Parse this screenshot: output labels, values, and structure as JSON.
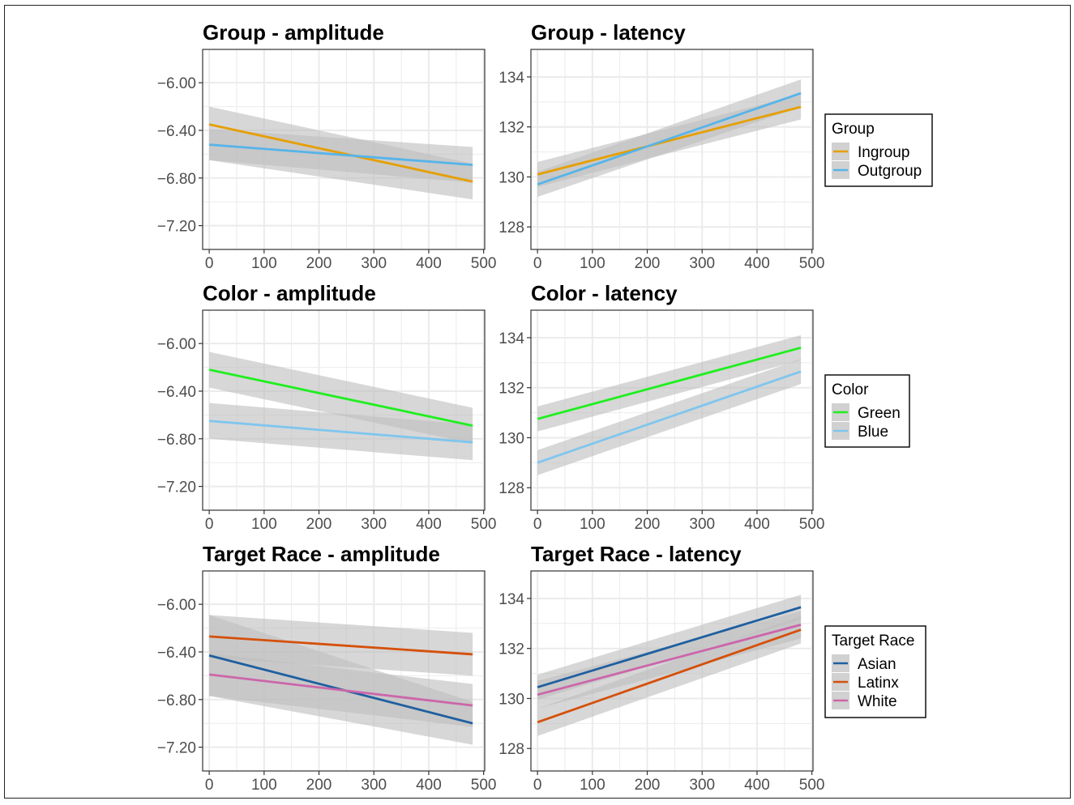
{
  "colors": {
    "ingroup": "#E69F00",
    "outgroup": "#56B4E9",
    "green": "#1FEF1F",
    "blue": "#7FC6EE",
    "asian": "#1F5FA0",
    "latinx": "#D5500A",
    "white": "#CC66AA",
    "ribbon": "#BEBEBE",
    "grid": "#EBEBEB",
    "panel_border": "#333333"
  },
  "chart_data": [
    {
      "type": "line",
      "title": "Group - amplitude",
      "xlabel": "",
      "ylabel": "",
      "xlim": [
        -12,
        502
      ],
      "ylim": [
        -7.4,
        -5.72
      ],
      "xticks": [
        "0",
        "100",
        "200",
        "300",
        "400",
        "500"
      ],
      "yticks": [
        "-6.00",
        "-6.40",
        "-6.80",
        "-7.20"
      ],
      "grid": true,
      "series": [
        {
          "name": "Ingroup",
          "color": "ingroup",
          "x": [
            0,
            480
          ],
          "y": [
            -6.35,
            -6.83
          ],
          "lower": [
            -6.65,
            -6.98
          ],
          "upper": [
            -6.2,
            -6.68
          ]
        },
        {
          "name": "Outgroup",
          "color": "outgroup",
          "x": [
            0,
            480
          ],
          "y": [
            -6.52,
            -6.69
          ],
          "lower": [
            -6.65,
            -6.84
          ],
          "upper": [
            -6.39,
            -6.54
          ]
        }
      ]
    },
    {
      "type": "line",
      "title": "Group - latency",
      "xlabel": "",
      "ylabel": "",
      "xlim": [
        -12,
        502
      ],
      "ylim": [
        127.1,
        135.1
      ],
      "xticks": [
        "0",
        "100",
        "200",
        "300",
        "400",
        "500"
      ],
      "yticks": [
        "134",
        "132",
        "130",
        "128"
      ],
      "grid": true,
      "series": [
        {
          "name": "Ingroup",
          "color": "ingroup",
          "x": [
            0,
            480
          ],
          "y": [
            130.1,
            132.8
          ],
          "lower": [
            129.6,
            132.3
          ],
          "upper": [
            130.6,
            133.3
          ]
        },
        {
          "name": "Outgroup",
          "color": "outgroup",
          "x": [
            0,
            480
          ],
          "y": [
            129.7,
            133.35
          ],
          "lower": [
            129.2,
            132.8
          ],
          "upper": [
            130.2,
            133.9
          ]
        }
      ]
    },
    {
      "type": "line",
      "title": "Color - amplitude",
      "xlabel": "",
      "ylabel": "",
      "xlim": [
        -12,
        502
      ],
      "ylim": [
        -7.4,
        -5.72
      ],
      "xticks": [
        "0",
        "100",
        "200",
        "300",
        "400",
        "500"
      ],
      "yticks": [
        "-6.00",
        "-6.40",
        "-6.80",
        "-7.20"
      ],
      "grid": true,
      "series": [
        {
          "name": "Green",
          "color": "green",
          "x": [
            0,
            480
          ],
          "y": [
            -6.22,
            -6.69
          ],
          "lower": [
            -6.37,
            -6.84
          ],
          "upper": [
            -6.07,
            -6.54
          ]
        },
        {
          "name": "Blue",
          "color": "blue",
          "x": [
            0,
            480
          ],
          "y": [
            -6.65,
            -6.83
          ],
          "lower": [
            -6.8,
            -6.98
          ],
          "upper": [
            -6.5,
            -6.68
          ]
        }
      ]
    },
    {
      "type": "line",
      "title": "Color - latency",
      "xlabel": "",
      "ylabel": "",
      "xlim": [
        -12,
        502
      ],
      "ylim": [
        127.1,
        135.1
      ],
      "xticks": [
        "0",
        "100",
        "200",
        "300",
        "400",
        "500"
      ],
      "yticks": [
        "134",
        "132",
        "130",
        "128"
      ],
      "grid": true,
      "series": [
        {
          "name": "Green",
          "color": "green",
          "x": [
            0,
            480
          ],
          "y": [
            130.75,
            133.6
          ],
          "lower": [
            130.25,
            133.1
          ],
          "upper": [
            131.25,
            134.1
          ]
        },
        {
          "name": "Blue",
          "color": "blue",
          "x": [
            0,
            480
          ],
          "y": [
            129.0,
            132.65
          ],
          "lower": [
            128.5,
            132.15
          ],
          "upper": [
            129.5,
            133.15
          ]
        }
      ]
    },
    {
      "type": "line",
      "title": "Target Race - amplitude",
      "xlabel": "",
      "ylabel": "",
      "xlim": [
        -12,
        502
      ],
      "ylim": [
        -7.4,
        -5.72
      ],
      "xticks": [
        "0",
        "100",
        "200",
        "300",
        "400",
        "500"
      ],
      "yticks": [
        "-6.00",
        "-6.40",
        "-6.80",
        "-7.20"
      ],
      "grid": true,
      "series": [
        {
          "name": "Asian",
          "color": "asian",
          "x": [
            0,
            480
          ],
          "y": [
            -6.43,
            -7.0
          ],
          "lower": [
            -6.77,
            -7.18
          ],
          "upper": [
            -6.09,
            -6.82
          ]
        },
        {
          "name": "Latinx",
          "color": "latinx",
          "x": [
            0,
            480
          ],
          "y": [
            -6.27,
            -6.42
          ],
          "lower": [
            -6.45,
            -6.6
          ],
          "upper": [
            -6.09,
            -6.24
          ]
        },
        {
          "name": "White",
          "color": "white",
          "x": [
            0,
            480
          ],
          "y": [
            -6.59,
            -6.85
          ],
          "lower": [
            -6.77,
            -7.03
          ],
          "upper": [
            -6.41,
            -6.67
          ]
        }
      ]
    },
    {
      "type": "line",
      "title": "Target Race - latency",
      "xlabel": "",
      "ylabel": "",
      "xlim": [
        -12,
        502
      ],
      "ylim": [
        127.1,
        135.1
      ],
      "xticks": [
        "0",
        "100",
        "200",
        "300",
        "400",
        "500"
      ],
      "yticks": [
        "134",
        "132",
        "130",
        "128"
      ],
      "grid": true,
      "series": [
        {
          "name": "Asian",
          "color": "asian",
          "x": [
            0,
            480
          ],
          "y": [
            130.45,
            133.65
          ],
          "lower": [
            129.95,
            133.15
          ],
          "upper": [
            130.95,
            134.15
          ]
        },
        {
          "name": "Latinx",
          "color": "latinx",
          "x": [
            0,
            480
          ],
          "y": [
            129.05,
            132.75
          ],
          "lower": [
            128.5,
            132.2
          ],
          "upper": [
            129.6,
            133.3
          ]
        },
        {
          "name": "White",
          "color": "white",
          "x": [
            0,
            480
          ],
          "y": [
            130.15,
            132.95
          ],
          "lower": [
            129.6,
            132.4
          ],
          "upper": [
            130.7,
            133.5
          ]
        }
      ]
    }
  ],
  "legends": [
    {
      "title": "Group",
      "items": [
        {
          "label": "Ingroup",
          "color": "ingroup"
        },
        {
          "label": "Outgroup",
          "color": "outgroup"
        }
      ]
    },
    {
      "title": "Color",
      "items": [
        {
          "label": "Green",
          "color": "green"
        },
        {
          "label": "Blue",
          "color": "blue"
        }
      ]
    },
    {
      "title": "Target Race",
      "items": [
        {
          "label": "Asian",
          "color": "asian"
        },
        {
          "label": "Latinx",
          "color": "latinx"
        },
        {
          "label": "White",
          "color": "white"
        }
      ]
    }
  ]
}
